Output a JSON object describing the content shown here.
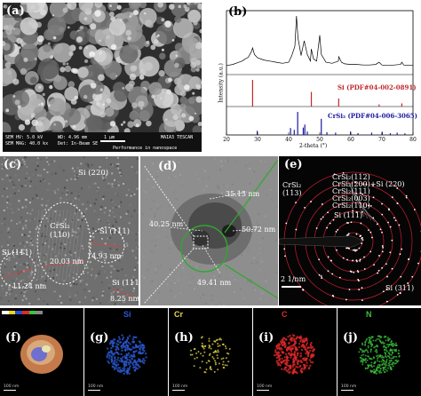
{
  "figure": {
    "panel_a": {
      "label": "(a)",
      "info": {
        "hv": "SEM HV: 5.0 kV",
        "wd": "WD: 4.96 mm",
        "mag": "SEM MAG: 40.0 kx",
        "det": "Det: In-Beam SE",
        "scale": "1 μm",
        "brand": "MAIA3 TESCAN",
        "perf": "Performance in nanospace"
      }
    },
    "panel_b": {
      "label": "(b)",
      "ylabel": "Intensity (a.u.)",
      "xlabel": "2-theta (°)",
      "xticks": [
        "20",
        "30",
        "40",
        "50",
        "60",
        "70",
        "80"
      ],
      "ref1": "Si (PDF#04-002-0891)",
      "ref2": "CrSi₂ (PDF#04-006-3065)"
    },
    "panel_c": {
      "label": "(c)",
      "annotations": {
        "si220": "Si (220)",
        "crsi2_110": "CrSi₂\n(110)",
        "si111_left": "Si (111)",
        "si111_mid": "Si (111)",
        "si111_br": "Si (111)",
        "d1": "20.03 nm",
        "d2": "14.93 nm",
        "d3": "11.24 nm",
        "d4": "8.25 nm"
      }
    },
    "panel_d": {
      "label": "(d)",
      "annotations": {
        "d1": "35.15 nm",
        "d2": "40.25 nm",
        "d3": "50.72 nm",
        "d4": "49.41 nm"
      }
    },
    "panel_e": {
      "label": "(e)",
      "rings": [
        "CrSi₂(112)",
        "CrSi₂(200)+Si (220)",
        "CrSi₂(111)",
        "CrSi₂(003)",
        "CrSi₂(110)"
      ],
      "left_label": "CrSi₂\n(113)",
      "si111": "Si (111)",
      "si311": "Si (311)",
      "scale": "2 1/nm"
    },
    "eds": {
      "f": {
        "label": "(f)",
        "title": ""
      },
      "g": {
        "label": "(g)",
        "title": "Si",
        "color": "#2c5bd6"
      },
      "h": {
        "label": "(h)",
        "title": "Cr",
        "color": "#e8d84a"
      },
      "i": {
        "label": "(i)",
        "title": "C",
        "color": "#e02a2a"
      },
      "j": {
        "label": "(j)",
        "title": "N",
        "color": "#3cc23c"
      },
      "scale": "100 nm"
    }
  },
  "chart_data": {
    "type": "line",
    "title": "",
    "xlabel": "2-theta (°)",
    "ylabel": "Intensity (a.u.)",
    "xlim": [
      20,
      80
    ],
    "series": [
      {
        "name": "",
        "x": [
          20,
          22,
          24,
          25,
          26,
          27,
          28,
          28.4,
          29,
          30,
          32,
          34,
          36,
          38,
          40,
          41,
          42,
          42.5,
          43,
          44,
          45,
          46,
          47,
          47.3,
          48,
          49,
          50,
          50.5,
          52,
          54,
          56,
          56.1,
          57,
          58,
          60,
          62,
          64,
          66,
          68,
          69.1,
          70,
          72,
          74,
          76,
          76.4,
          77,
          80
        ],
        "y": [
          10,
          12,
          16,
          18,
          22,
          25,
          35,
          42,
          30,
          24,
          20,
          18,
          16,
          14,
          16,
          28,
          45,
          100,
          60,
          28,
          55,
          30,
          18,
          40,
          22,
          18,
          65,
          30,
          16,
          14,
          18,
          26,
          16,
          13,
          12,
          12,
          11,
          11,
          12,
          16,
          11,
          10,
          11,
          12,
          16,
          11,
          10
        ]
      }
    ],
    "reference_si": {
      "name": "Si (PDF#04-002-0891)",
      "positions": [
        28.4,
        47.3,
        56.1,
        69.1,
        76.4
      ],
      "heights": [
        100,
        55,
        30,
        8,
        12
      ]
    },
    "reference_crsi2": {
      "name": "CrSi₂ (PDF#04-006-3065)",
      "positions": [
        29.9,
        40.6,
        41.8,
        42.9,
        44.7,
        45.2,
        46.0,
        50.5,
        52.3,
        55.1,
        59.9,
        62.3,
        66.7,
        70.1,
        72.7,
        74.9,
        77.4
      ],
      "heights": [
        18,
        30,
        22,
        100,
        32,
        45,
        15,
        70,
        12,
        10,
        15,
        8,
        10,
        14,
        8,
        10,
        7
      ]
    }
  }
}
